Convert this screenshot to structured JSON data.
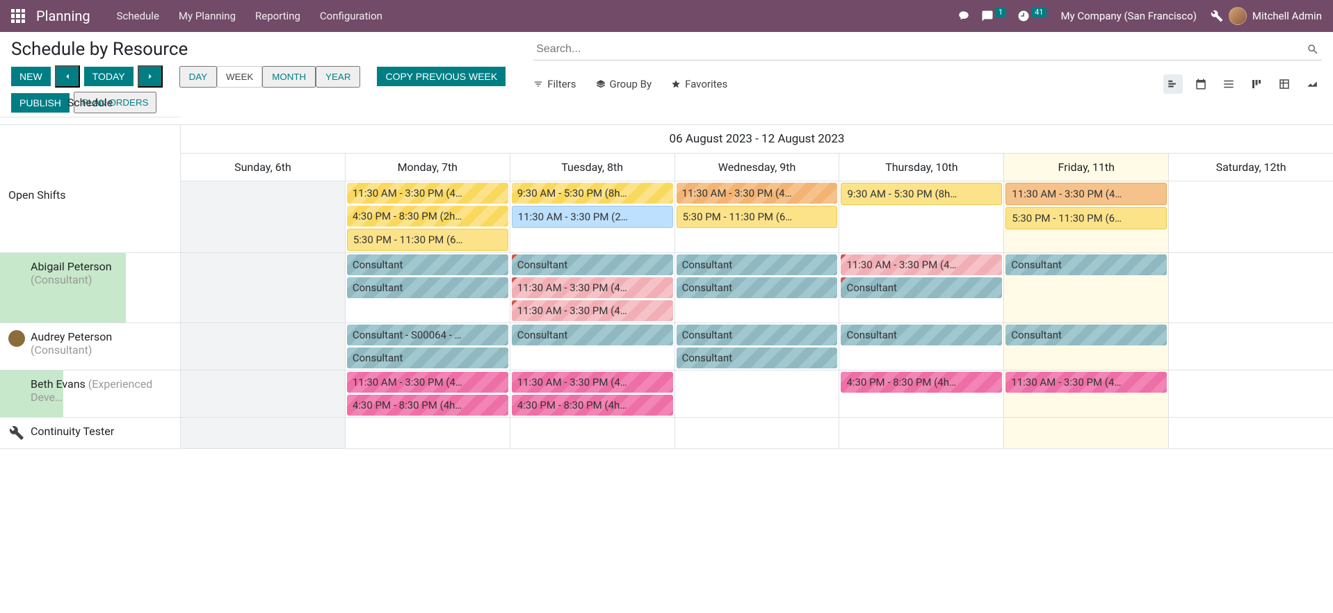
{
  "nav": {
    "brand": "Planning",
    "links": [
      "Schedule",
      "My Planning",
      "Reporting",
      "Configuration"
    ],
    "msg_badge": "1",
    "act_badge": "41",
    "company": "My Company (San Francisco)",
    "user": "Mitchell Admin"
  },
  "page": {
    "title": "Schedule by Resource",
    "buttons": {
      "new": "NEW",
      "today": "TODAY",
      "copy": "COPY PREVIOUS WEEK",
      "publish": "PUBLISH",
      "plan": "PLAN ORDERS"
    },
    "scales": {
      "day": "DAY",
      "week": "WEEK",
      "month": "MONTH",
      "year": "YEAR",
      "active": "week"
    },
    "search_placeholder": "Search...",
    "filters": {
      "filters": "Filters",
      "groupby": "Group By",
      "favorites": "Favorites"
    }
  },
  "gantt": {
    "range": "06 August 2023 - 12 August 2023",
    "side_header": "Schedule",
    "days": [
      {
        "label": "Sunday, 6th",
        "off": true
      },
      {
        "label": "Monday, 7th"
      },
      {
        "label": "Tuesday, 8th"
      },
      {
        "label": "Wednesday, 9th"
      },
      {
        "label": "Thursday, 10th"
      },
      {
        "label": "Friday, 11th",
        "today": true
      },
      {
        "label": "Saturday, 12th"
      }
    ],
    "rows": [
      {
        "name": "Open Shifts",
        "cells": [
          [],
          [
            {
              "t": "11:30 AM - 3:30 PM (4…",
              "c": "c-yellow"
            },
            {
              "t": "4:30 PM - 8:30 PM (2h…",
              "c": "c-yellow"
            },
            {
              "t": "5:30 PM - 11:30 PM (6…",
              "c": "c-yellow-s"
            }
          ],
          [
            {
              "t": "9:30 AM - 5:30 PM (8h…",
              "c": "c-yellow"
            },
            {
              "t": "11:30 AM - 3:30 PM (2…",
              "c": "c-blue-l"
            }
          ],
          [
            {
              "t": "11:30 AM - 3:30 PM (4…",
              "c": "c-orange"
            },
            {
              "t": "5:30 PM - 11:30 PM (6…",
              "c": "c-yellow-s"
            }
          ],
          [
            {
              "t": "9:30 AM - 5:30 PM (8h…",
              "c": "c-yellow-s"
            }
          ],
          [
            {
              "t": "11:30 AM - 3:30 PM (4…",
              "c": "c-orange-s"
            },
            {
              "t": "5:30 PM - 11:30 PM (6…",
              "c": "c-yellow-s"
            }
          ],
          []
        ]
      },
      {
        "name": "Abigail Peterson",
        "role": "(Consultant)",
        "avatar": "#b87d5a",
        "avail": 70,
        "cells": [
          [],
          [
            {
              "t": "Consultant",
              "c": "c-teal"
            },
            {
              "t": "Consultant",
              "c": "c-teal"
            }
          ],
          [
            {
              "t": "Consultant",
              "c": "c-teal",
              "corner": true
            },
            {
              "t": "11:30 AM - 3:30 PM (4…",
              "c": "c-pink-l",
              "corner": true
            },
            {
              "t": "11:30 AM - 3:30 PM (4…",
              "c": "c-pink-l",
              "corner": true
            }
          ],
          [
            {
              "t": "Consultant",
              "c": "c-teal"
            },
            {
              "t": "Consultant",
              "c": "c-teal"
            }
          ],
          [
            {
              "t": "11:30 AM - 3:30 PM (4…",
              "c": "c-pink-l",
              "corner": true
            },
            {
              "t": "Consultant",
              "c": "c-teal",
              "corner": true
            }
          ],
          [
            {
              "t": "Consultant",
              "c": "c-teal"
            }
          ],
          []
        ]
      },
      {
        "name": "Audrey Peterson",
        "role": "(Consultant)",
        "avatar": "#8a6d3b",
        "avail": 0,
        "cells": [
          [],
          [
            {
              "t": "Consultant - S00064 - …",
              "c": "c-teal"
            },
            {
              "t": "Consultant",
              "c": "c-teal"
            }
          ],
          [
            {
              "t": "Consultant",
              "c": "c-teal"
            }
          ],
          [
            {
              "t": "Consultant",
              "c": "c-teal"
            },
            {
              "t": "Consultant",
              "c": "c-teal"
            }
          ],
          [
            {
              "t": "Consultant",
              "c": "c-teal"
            }
          ],
          [
            {
              "t": "Consultant",
              "c": "c-teal"
            }
          ],
          []
        ]
      },
      {
        "name": "Beth Evans",
        "role": "(Experienced Deve…",
        "avatar": "#e8e8e8",
        "avail": 35,
        "cells": [
          [],
          [
            {
              "t": "11:30 AM - 3:30 PM (4…",
              "c": "c-pink"
            },
            {
              "t": "4:30 PM - 8:30 PM (4h…",
              "c": "c-pink"
            }
          ],
          [
            {
              "t": "11:30 AM - 3:30 PM (4…",
              "c": "c-pink"
            },
            {
              "t": "4:30 PM - 8:30 PM (4h…",
              "c": "c-pink"
            }
          ],
          [],
          [
            {
              "t": "4:30 PM - 8:30 PM (4h…",
              "c": "c-pink"
            }
          ],
          [
            {
              "t": "11:30 AM - 3:30 PM (4…",
              "c": "c-pink"
            }
          ],
          []
        ]
      },
      {
        "name": "Continuity Tester",
        "icon": "wrench",
        "cells": [
          [],
          [],
          [],
          [],
          [],
          [],
          []
        ]
      }
    ]
  },
  "colors": {
    "brand_bar": "#714B67",
    "primary": "#017e84",
    "today_bg": "#fffbe6",
    "off_bg": "#f1f3f4",
    "avail_bg": "#c7e8ca"
  }
}
